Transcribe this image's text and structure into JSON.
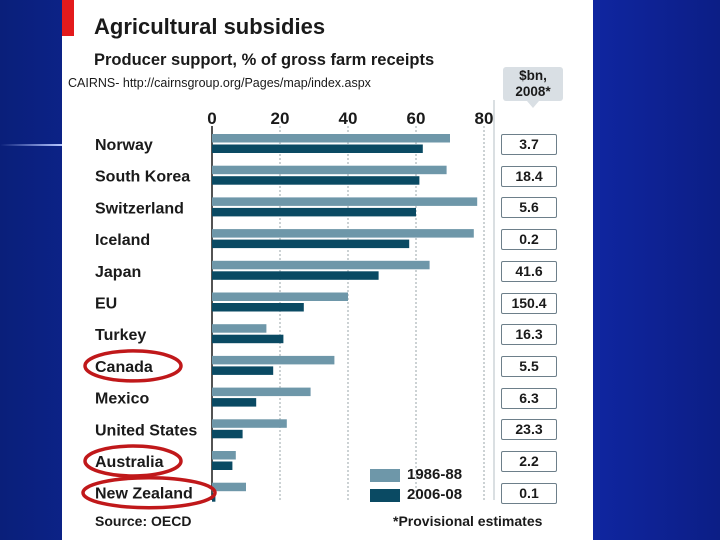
{
  "chart_data": {
    "type": "bar",
    "title": "Agricultural subsidies",
    "subtitle": "Producer support, % of gross farm receipts",
    "categories": [
      "Norway",
      "South Korea",
      "Switzerland",
      "Iceland",
      "Japan",
      "EU",
      "Turkey",
      "Canada",
      "Mexico",
      "United States",
      "Australia",
      "New Zealand"
    ],
    "series": [
      {
        "name": "1986-88",
        "color": "#6e97a9",
        "values": [
          70,
          69,
          78,
          77,
          64,
          40,
          16,
          36,
          29,
          22,
          7,
          10
        ]
      },
      {
        "name": "2006-08",
        "color": "#0a4a63",
        "values": [
          62,
          61,
          60,
          58,
          49,
          27,
          21,
          18,
          13,
          9,
          6,
          1
        ]
      }
    ],
    "xlim": [
      0,
      80
    ],
    "xticks": [
      "0",
      "20",
      "40",
      "60",
      "80"
    ],
    "grid": true,
    "legend": "bottom-right",
    "estimates_header": [
      "$bn,",
      "2008*"
    ],
    "estimates": [
      "3.7",
      "18.4",
      "5.6",
      "0.2",
      "41.6",
      "150.4",
      "16.3",
      "5.5",
      "6.3",
      "23.3",
      "2.2",
      "0.1"
    ],
    "source": "Source: OECD",
    "footnote": "*Provisional estimates",
    "highlighted": [
      "Canada",
      "Australia",
      "New Zealand"
    ],
    "highlight_color": "#c0181a"
  },
  "overlay_text": "CAIRNS- http://cairnsgroup.org/Pages/map/index.aspx",
  "colors": {
    "background": "#1432c8",
    "title_tab": "#e31a1c"
  }
}
